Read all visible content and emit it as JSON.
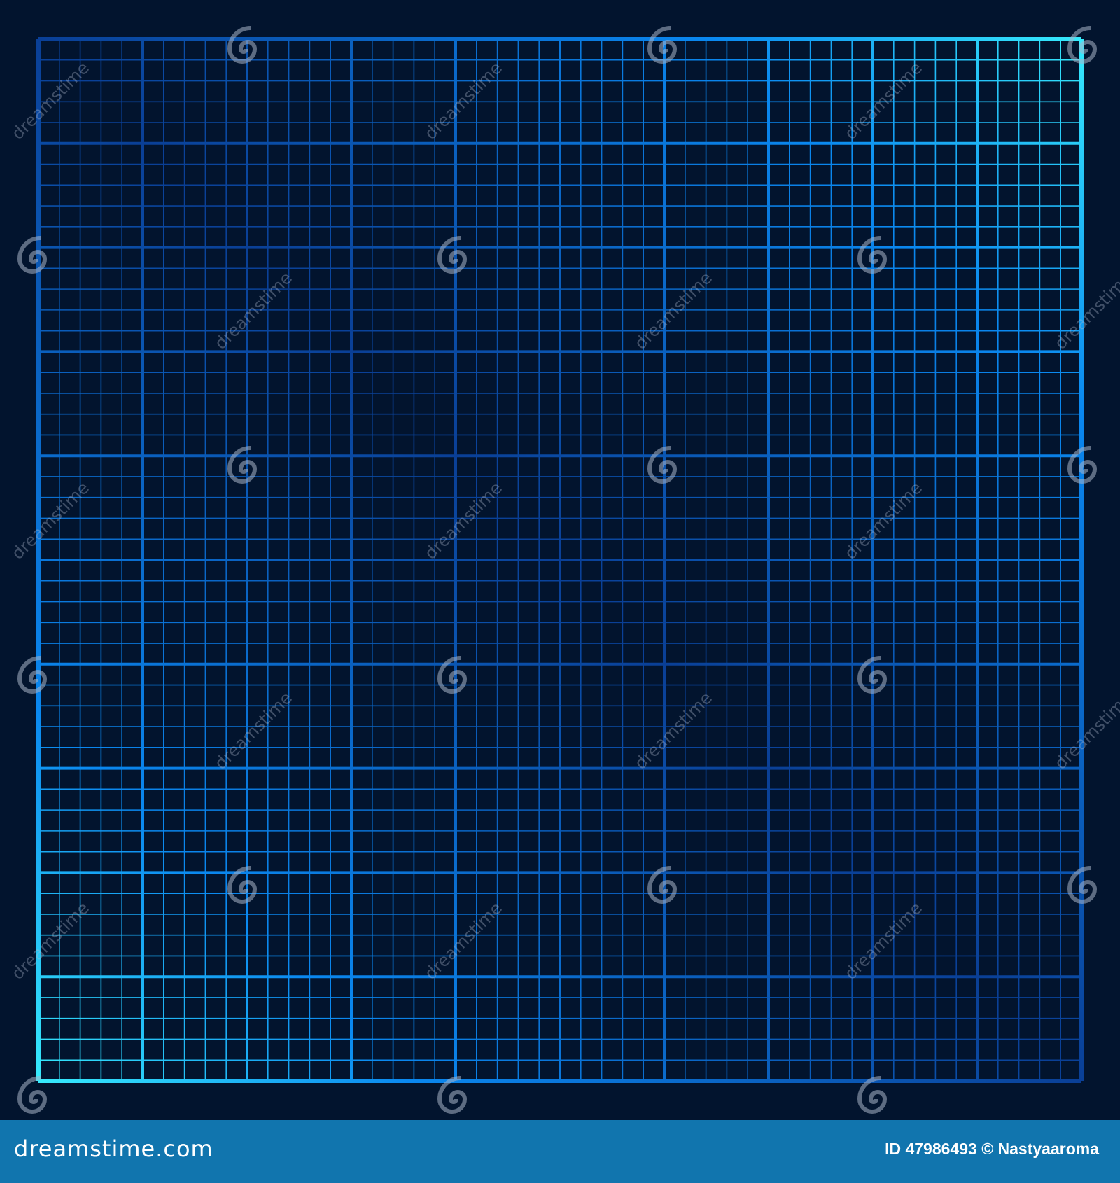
{
  "grid": {
    "major_divisions": 10,
    "minor_per_major": 5,
    "colors": {
      "edge": "#3ff0ff",
      "mid": "#0a7ae8",
      "center": "#0a3a8c",
      "background": "#02142e"
    }
  },
  "watermark": {
    "text": "dreamstime",
    "icon": "spiral-logo-icon"
  },
  "footer": {
    "brand": "dreamstime.com",
    "credit": "ID 47986493 © Nastyaaroma",
    "background": "#1175ae"
  }
}
